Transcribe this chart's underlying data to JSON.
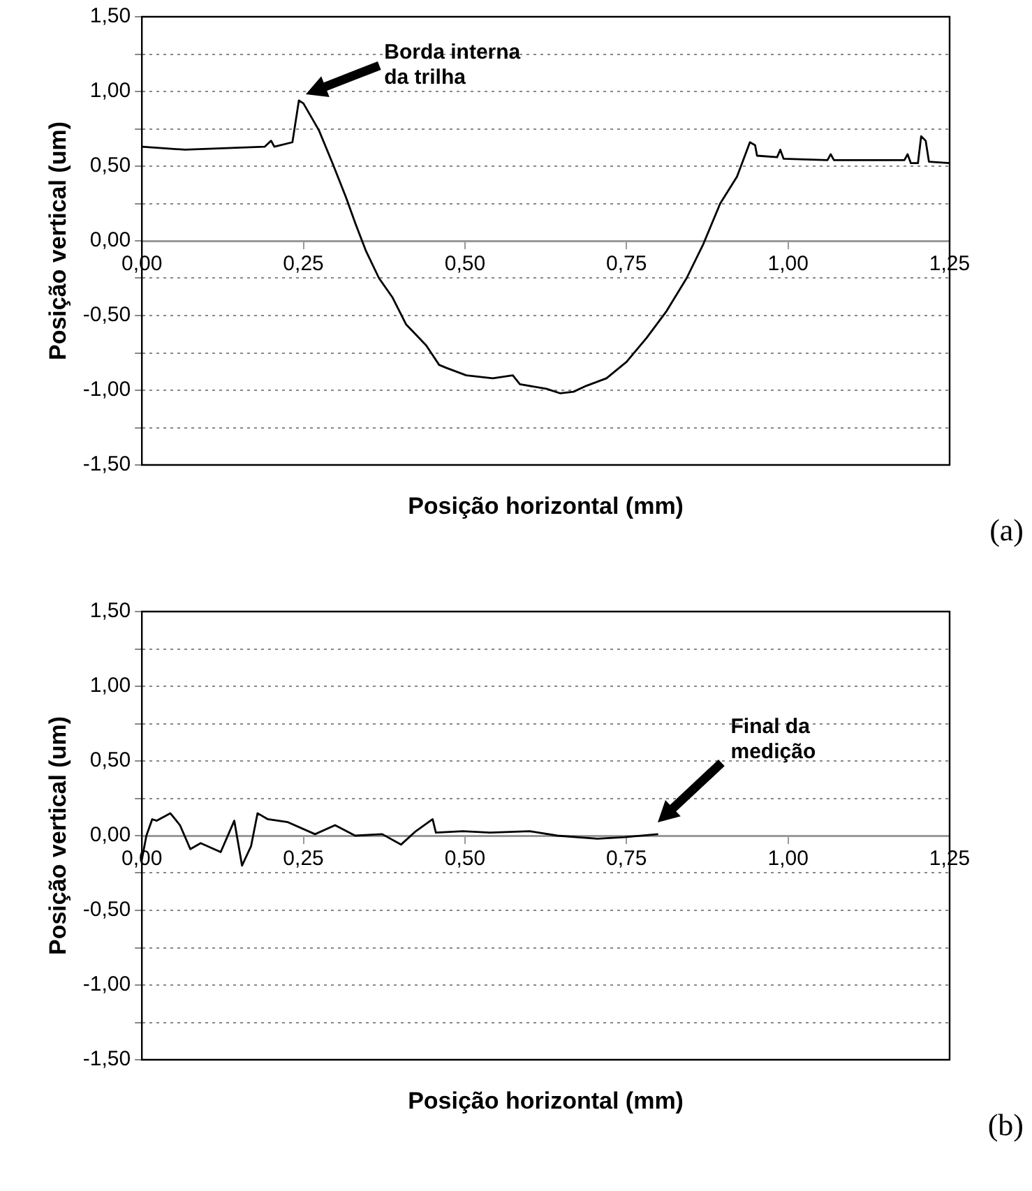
{
  "chart_data": [
    {
      "type": "line",
      "xlabel": "Posição horizontal (mm)",
      "ylabel": "Posição vertical (um)",
      "xlim": [
        0,
        1.25
      ],
      "ylim": [
        -1.5,
        1.5
      ],
      "xticks": [
        {
          "value": 0,
          "label": "0,00"
        },
        {
          "value": 0.25,
          "label": "0,25"
        },
        {
          "value": 0.5,
          "label": "0,50"
        },
        {
          "value": 0.75,
          "label": "0,75"
        },
        {
          "value": 1,
          "label": "1,00"
        },
        {
          "value": 1.25,
          "label": "1,25"
        }
      ],
      "yticks": [
        {
          "value": -1.5,
          "label": "-1,50"
        },
        {
          "value": -1.25,
          "label": null
        },
        {
          "value": -1,
          "label": "-1,00"
        },
        {
          "value": -0.75,
          "label": null
        },
        {
          "value": -0.5,
          "label": "-0,50"
        },
        {
          "value": -0.25,
          "label": null
        },
        {
          "value": 0,
          "label": "0,00"
        },
        {
          "value": 0.25,
          "label": null
        },
        {
          "value": 0.5,
          "label": "0,50"
        },
        {
          "value": 0.75,
          "label": null
        },
        {
          "value": 1,
          "label": "1,00"
        },
        {
          "value": 1.25,
          "label": null
        },
        {
          "value": 1.5,
          "label": "1,50"
        }
      ],
      "grid": "y",
      "legend": false,
      "marker": "none",
      "line_style": "solid",
      "series": [
        {
          "color": "#000000",
          "x": [
            0,
            0.067,
            0.19,
            0.2,
            0.205,
            0.233,
            0.243,
            0.25,
            0.274,
            0.295,
            0.316,
            0.331,
            0.347,
            0.367,
            0.388,
            0.409,
            0.44,
            0.46,
            0.471,
            0.502,
            0.543,
            0.574,
            0.585,
            0.626,
            0.647,
            0.668,
            0.688,
            0.719,
            0.75,
            0.781,
            0.812,
            0.843,
            0.869,
            0.895,
            0.921,
            0.941,
            0.949,
            0.952,
            0.983,
            0.988,
            0.993,
            1.061,
            1.066,
            1.071,
            1.18,
            1.185,
            1.19,
            1.201,
            1.206,
            1.213,
            1.218,
            1.25
          ],
          "values": [
            0.63,
            0.61,
            0.63,
            0.67,
            0.63,
            0.66,
            0.94,
            0.92,
            0.74,
            0.52,
            0.29,
            0.11,
            -0.07,
            -0.25,
            -0.38,
            -0.56,
            -0.7,
            -0.83,
            -0.85,
            -0.9,
            -0.92,
            -0.9,
            -0.96,
            -0.99,
            -1.02,
            -1.01,
            -0.97,
            -0.92,
            -0.81,
            -0.65,
            -0.47,
            -0.25,
            -0.02,
            0.25,
            0.43,
            0.66,
            0.64,
            0.57,
            0.56,
            0.61,
            0.55,
            0.54,
            0.58,
            0.54,
            0.54,
            0.58,
            0.52,
            0.52,
            0.7,
            0.67,
            0.53,
            0.52
          ]
        }
      ],
      "annotations": [
        "Borda interna da trilha",
        "(a)"
      ]
    },
    {
      "type": "line",
      "xlabel": "Posição horizontal (mm)",
      "ylabel": "Posição vertical (um)",
      "xlim": [
        0,
        1.25
      ],
      "ylim": [
        -1.5,
        1.5
      ],
      "xticks": [
        {
          "value": 0,
          "label": "0,00"
        },
        {
          "value": 0.25,
          "label": "0,25"
        },
        {
          "value": 0.5,
          "label": "0,50"
        },
        {
          "value": 0.75,
          "label": "0,75"
        },
        {
          "value": 1,
          "label": "1,00"
        },
        {
          "value": 1.25,
          "label": "1,25"
        }
      ],
      "yticks": [
        {
          "value": -1.5,
          "label": "-1,50"
        },
        {
          "value": -1.25,
          "label": null
        },
        {
          "value": -1,
          "label": "-1,00"
        },
        {
          "value": -0.75,
          "label": null
        },
        {
          "value": -0.5,
          "label": "-0,50"
        },
        {
          "value": -0.25,
          "label": null
        },
        {
          "value": 0,
          "label": "0,00"
        },
        {
          "value": 0.25,
          "label": null
        },
        {
          "value": 0.5,
          "label": "0,50"
        },
        {
          "value": 0.75,
          "label": null
        },
        {
          "value": 1,
          "label": "1,00"
        },
        {
          "value": 1.25,
          "label": null
        },
        {
          "value": 1.5,
          "label": "1,50"
        }
      ],
      "grid": "y",
      "legend": false,
      "marker": "none",
      "line_style": "solid",
      "series": [
        {
          "color": "#000000",
          "x": [
            0,
            0.007,
            0.016,
            0.023,
            0.044,
            0.059,
            0.075,
            0.091,
            0.122,
            0.143,
            0.155,
            0.169,
            0.179,
            0.195,
            0.226,
            0.268,
            0.299,
            0.33,
            0.372,
            0.401,
            0.424,
            0.45,
            0.455,
            0.497,
            0.539,
            0.6,
            0.643,
            0.705,
            0.747,
            0.799
          ],
          "values": [
            -0.16,
            0,
            0.11,
            0.1,
            0.15,
            0.07,
            -0.09,
            -0.05,
            -0.11,
            0.1,
            -0.2,
            -0.07,
            0.15,
            0.11,
            0.09,
            0.01,
            0.07,
            0,
            0.01,
            -0.06,
            0.03,
            0.11,
            0.02,
            0.03,
            0.02,
            0.03,
            0,
            -0.02,
            -0.01,
            0.01
          ]
        }
      ],
      "annotations": [
        "Final da medição",
        "(b)"
      ]
    }
  ]
}
